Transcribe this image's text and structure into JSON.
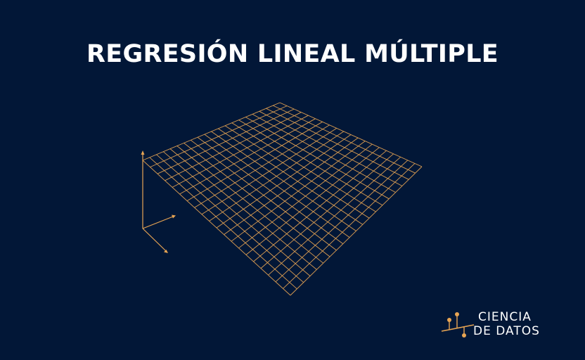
{
  "title": "REGRESIÓN LINEAL MÚLTIPLE",
  "logo": {
    "line1": "CIENCIA",
    "line2": "DE DATOS"
  },
  "colors": {
    "background": "#021737",
    "accent": "#e8a553",
    "text": "#ffffff"
  },
  "icons": {
    "plane": "regression-plane-grid",
    "axes": "3d-axes-icon",
    "logo": "data-points-regression-logo-icon"
  }
}
